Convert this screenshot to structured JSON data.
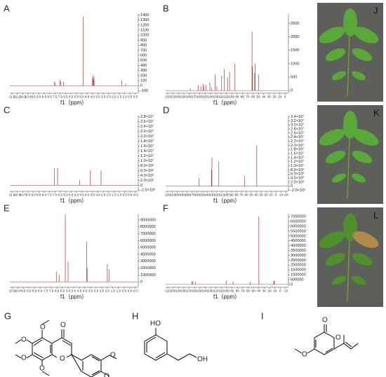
{
  "panels": [
    {
      "label": "A",
      "x_label": "f1（ppm）",
      "xlim": [
        11.7,
        -0.2
      ],
      "xticks": [
        11.5,
        {
          "value": 11,
          "label": "11.0"
        },
        10.5,
        {
          "value": 10,
          "label": "10.0"
        },
        9.5,
        {
          "value": 9,
          "label": "9.0"
        },
        8.5,
        {
          "value": 8,
          "label": "8.0"
        },
        7.5,
        {
          "value": 7,
          "label": "7.0"
        },
        6.5,
        {
          "value": 6,
          "label": "6.0"
        },
        5.5,
        {
          "value": 5,
          "label": "5.0"
        },
        4.5,
        {
          "value": 4,
          "label": "4.0"
        },
        3.5,
        {
          "value": 3,
          "label": "3.0"
        },
        2.5,
        {
          "value": 2,
          "label": "2.0"
        },
        1.5,
        {
          "value": 1,
          "label": "1.0"
        },
        0.5,
        {
          "value": 0,
          "label": "0.0"
        }
      ],
      "ylim": [
        -150,
        1420
      ],
      "yticks": [
        -100,
        0,
        100,
        200,
        300,
        400,
        500,
        600,
        700,
        800,
        900,
        1000,
        1100,
        1200,
        1300,
        1400
      ],
      "peaks": {
        "x": [
          7.55,
          7.45,
          7.05,
          6.95,
          6.7,
          4.87,
          4.0,
          3.95,
          3.9,
          3.85,
          1.28,
          0.9
        ],
        "y": [
          80,
          60,
          120,
          90,
          70,
          1370,
          150,
          200,
          120,
          180,
          110,
          40
        ]
      }
    },
    {
      "label": "B",
      "x_label": "f1（ppm）",
      "xlim": [
        224,
        -5
      ],
      "xticks": [
        220,
        210,
        200,
        190,
        180,
        170,
        160,
        150,
        140,
        130,
        120,
        110,
        100,
        90,
        80,
        70,
        60,
        50,
        40,
        30,
        20,
        10,
        0
      ],
      "ylim": [
        -100,
        2850
      ],
      "yticks": [
        0,
        500,
        1000,
        1500,
        2000,
        2500
      ],
      "peaks": {
        "x": [
          178,
          163,
          158,
          154,
          152,
          148,
          141,
          138,
          131,
          128,
          119,
          114,
          108,
          104,
          94,
          62,
          61,
          57,
          56,
          50
        ],
        "y": [
          80,
          200,
          150,
          250,
          180,
          220,
          300,
          120,
          600,
          150,
          550,
          800,
          500,
          700,
          1000,
          2200,
          900,
          650,
          1000,
          600
        ]
      }
    },
    {
      "label": "C",
      "x_label": "f1（ppm）",
      "xlim": [
        11.2,
        -0.7
      ],
      "xticks": [
        {
          "value": 11,
          "label": "11.0"
        },
        10.5,
        {
          "value": 10,
          "label": "10.0"
        },
        9.5,
        {
          "value": 9,
          "label": "9.0"
        },
        8.5,
        {
          "value": 8,
          "label": "8.0"
        },
        7.5,
        {
          "value": 7,
          "label": "7.0"
        },
        6.5,
        {
          "value": 6,
          "label": "6.0"
        },
        5.5,
        {
          "value": 5,
          "label": "5.0"
        },
        4.5,
        {
          "value": 4,
          "label": "4.0"
        },
        3.5,
        {
          "value": 3,
          "label": "3.0"
        },
        2.5,
        {
          "value": 2,
          "label": "2.0"
        },
        1.5,
        {
          "value": 1,
          "label": "1.0"
        },
        0.5,
        {
          "value": 0,
          "label": "0.0"
        },
        -0.5
      ],
      "ylim": [
        -2500000,
        28500000
      ],
      "yticks": [
        {
          "value": -2000000,
          "label": "-2.0×10⁶"
        },
        0,
        {
          "value": 2000000,
          "label": "2.0×10⁶"
        },
        {
          "value": 4000000,
          "label": "4.0×10⁶"
        },
        {
          "value": 6000000,
          "label": "6.0×10⁶"
        },
        {
          "value": 8000000,
          "label": "8.0×10⁶"
        },
        {
          "value": 10000000,
          "label": "1.0×10⁷"
        },
        {
          "value": 12000000,
          "label": "1.2×10⁷"
        },
        {
          "value": 14000000,
          "label": "1.4×10⁷"
        },
        {
          "value": 16000000,
          "label": "1.6×10⁷"
        },
        {
          "value": 18000000,
          "label": "1.8×10⁷"
        },
        {
          "value": 20000000,
          "label": "2.0×10⁷"
        },
        {
          "value": 22000000,
          "label": "2.2×10⁷"
        },
        {
          "value": 24000000,
          "label": "2.4×10⁷"
        },
        {
          "value": 26000000,
          "label": "2.6×10⁷"
        },
        {
          "value": 28000000,
          "label": "2.8×10⁷"
        }
      ],
      "peaks": {
        "x": [
          7.05,
          6.75,
          4.7,
          3.7,
          2.7
        ],
        "y": [
          7000000,
          7000000,
          2000000,
          6000000,
          6000000
        ]
      }
    },
    {
      "label": "D",
      "x_label": "f1（ppm）",
      "xlim": [
        224,
        -24
      ],
      "xticks": [
        220,
        210,
        200,
        190,
        180,
        170,
        160,
        150,
        140,
        130,
        120,
        110,
        100,
        90,
        80,
        70,
        60,
        50,
        40,
        30,
        20,
        10,
        0,
        -10,
        -20
      ],
      "ylim": [
        -2500000,
        34500000
      ],
      "yticks": [
        {
          "value": -2000000,
          "label": "-2.0×10⁶"
        },
        0,
        {
          "value": 2000000,
          "label": "2.0×10⁶"
        },
        {
          "value": 4000000,
          "label": "4.0×10⁶"
        },
        {
          "value": 6000000,
          "label": "6.0×10⁶"
        },
        {
          "value": 8000000,
          "label": "8.0×10⁶"
        },
        {
          "value": 10000000,
          "label": "1.0×10⁷"
        },
        {
          "value": 12000000,
          "label": "1.2×10⁷"
        },
        {
          "value": 14000000,
          "label": "1.4×10⁷"
        },
        {
          "value": 16000000,
          "label": "1.6×10⁷"
        },
        {
          "value": 18000000,
          "label": "1.8×10⁷"
        },
        {
          "value": 20000000,
          "label": "2.0×10⁷"
        },
        {
          "value": 22000000,
          "label": "2.2×10⁷"
        },
        {
          "value": 24000000,
          "label": "2.4×10⁷"
        },
        {
          "value": 26000000,
          "label": "2.6×10⁷"
        },
        {
          "value": 28000000,
          "label": "2.8×10⁷"
        },
        {
          "value": 30000000,
          "label": "3.0×10⁷"
        },
        {
          "value": 32000000,
          "label": "3.2×10⁷"
        },
        {
          "value": 34000000,
          "label": "3.4×10⁷"
        }
      ],
      "peaks": {
        "x": [
          156,
          131,
          130,
          116,
          64,
          39
        ],
        "y": [
          4000000,
          8000000,
          14000000,
          12000000,
          5000000,
          20000000
        ]
      }
    },
    {
      "label": "E",
      "x_label": "f1（ppm）",
      "xlim": [
        10.7,
        -0.7
      ],
      "xticks": [
        10.5,
        {
          "value": 10,
          "label": "10.0"
        },
        9.5,
        {
          "value": 9,
          "label": "9.0"
        },
        8.5,
        {
          "value": 8,
          "label": "8.0"
        },
        7.5,
        {
          "value": 7,
          "label": "7.0"
        },
        6.5,
        {
          "value": 6,
          "label": "6.0"
        },
        5.5,
        {
          "value": 5,
          "label": "5.0"
        },
        4.5,
        {
          "value": 4,
          "label": "4.0"
        },
        3.5,
        {
          "value": 3,
          "label": "3.0"
        },
        2.5,
        {
          "value": 2,
          "label": "2.0"
        },
        1.5,
        {
          "value": 1,
          "label": "1.0"
        },
        0.5,
        {
          "value": 0,
          "label": "0.0"
        },
        -0.5
      ],
      "ylim": [
        -800000,
        9900000
      ],
      "yticks": [
        0,
        1000000,
        2000000,
        3000000,
        4000000,
        5000000,
        6000000,
        7000000,
        8000000,
        9000000
      ],
      "peaks": {
        "x": [
          6.55,
          6.3,
          5.75,
          5.5,
          3.85,
          3.8,
          2.0,
          1.85
        ],
        "y": [
          1500000,
          1000000,
          9800000,
          3000000,
          5800000,
          2000000,
          2600000,
          1800000
        ]
      }
    },
    {
      "label": "F",
      "x_label": "f1（ppm）",
      "xlim": [
        214,
        -14
      ],
      "xticks": [
        210,
        200,
        190,
        180,
        170,
        160,
        150,
        140,
        130,
        120,
        110,
        100,
        90,
        80,
        70,
        60,
        50,
        40,
        30,
        20,
        10,
        0,
        -10
      ],
      "ylim": [
        -300000,
        7300000
      ],
      "yticks": [
        0,
        500000,
        1000000,
        1500000,
        2000000,
        2500000,
        3000000,
        3500000,
        4000000,
        4500000,
        5000000,
        5500000,
        6000000,
        6500000,
        7000000
      ],
      "peaks": {
        "x": [
          165,
          163,
          158,
          101,
          88,
          56,
          40,
          12,
          11
        ],
        "y": [
          300000,
          350000,
          300000,
          400000,
          300000,
          280000,
          7000000,
          400000,
          350000
        ]
      }
    }
  ],
  "structures": [
    {
      "label": "G",
      "atoms": [
        "O",
        "O",
        "O",
        "O",
        "O",
        "O",
        "O",
        "O"
      ]
    },
    {
      "label": "H",
      "atoms": [
        "HO",
        "OH"
      ]
    },
    {
      "label": "I",
      "atoms": [
        "O",
        "O",
        "O"
      ]
    }
  ],
  "photos": [
    {
      "label": "J"
    },
    {
      "label": "K"
    },
    {
      "label": "L"
    }
  ]
}
